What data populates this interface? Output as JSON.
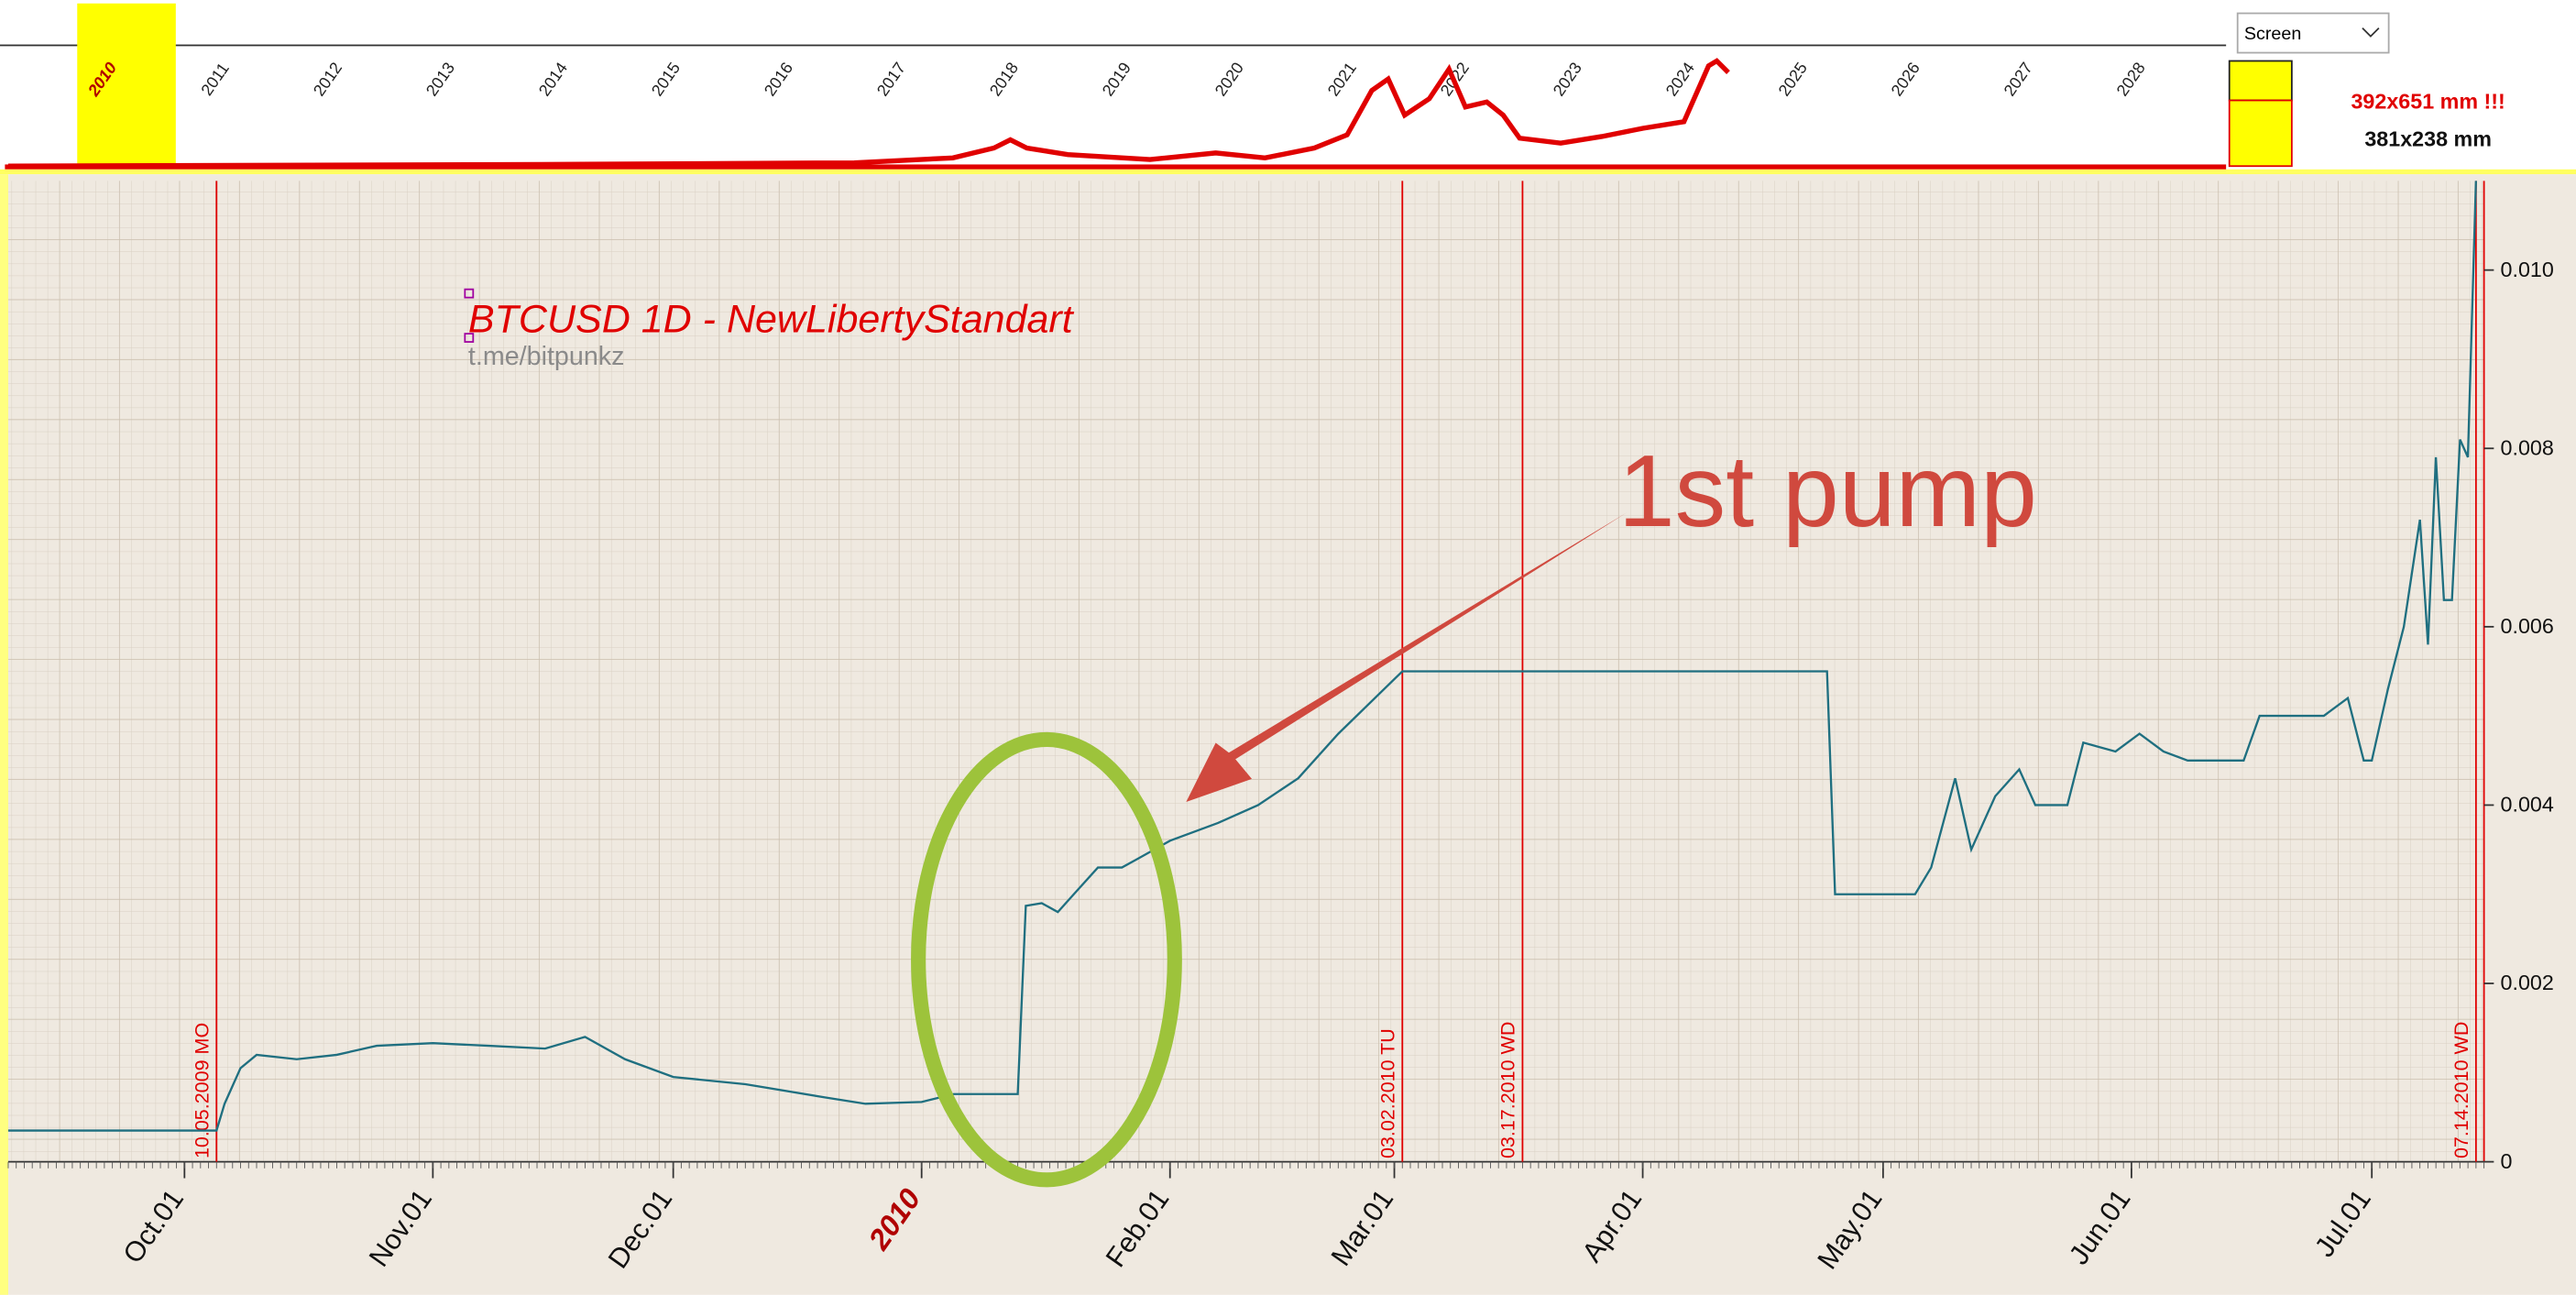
{
  "overview": {
    "years": [
      "2010",
      "2011",
      "2012",
      "2013",
      "2014",
      "2015",
      "2016",
      "2017",
      "2018",
      "2019",
      "2020",
      "2021",
      "2022",
      "2023",
      "2024",
      "2025",
      "2026",
      "2027",
      "2028"
    ],
    "dropdown": "Screen",
    "size_warning": "392x651 mm !!!",
    "size": "381x238 mm"
  },
  "chart_data": {
    "type": "line",
    "title": "BTCUSD 1D - NewLibertyStandart",
    "subtitle": "t.me/bitpunkz",
    "annotation": "1st pump",
    "color": "#1f6f80",
    "x": [
      "2009-09-09",
      "2009-10-05",
      "2009-10-06",
      "2009-10-08",
      "2009-10-10",
      "2009-10-15",
      "2009-10-20",
      "2009-10-25",
      "2009-11-01",
      "2009-11-08",
      "2009-11-15",
      "2009-11-20",
      "2009-11-25",
      "2009-12-01",
      "2009-12-10",
      "2009-12-20",
      "2009-12-25",
      "2010-01-01",
      "2010-01-05",
      "2010-01-13",
      "2010-01-14",
      "2010-01-16",
      "2010-01-18",
      "2010-01-20",
      "2010-01-23",
      "2010-01-26",
      "2010-01-28",
      "2010-02-01",
      "2010-02-07",
      "2010-02-12",
      "2010-02-17",
      "2010-02-22",
      "2010-03-02",
      "2010-04-24",
      "2010-04-25",
      "2010-05-05",
      "2010-05-07",
      "2010-05-10",
      "2010-05-12",
      "2010-05-15",
      "2010-05-18",
      "2010-05-20",
      "2010-05-24",
      "2010-05-26",
      "2010-05-30",
      "2010-06-02",
      "2010-06-05",
      "2010-06-08",
      "2010-06-15",
      "2010-06-17",
      "2010-06-25",
      "2010-06-28",
      "2010-06-30",
      "2010-07-01",
      "2010-07-03",
      "2010-07-05",
      "2010-07-07",
      "2010-07-08",
      "2010-07-09",
      "2010-07-10",
      "2010-07-11",
      "2010-07-12",
      "2010-07-13",
      "2010-07-14"
    ],
    "values": [
      0.00035,
      0.00035,
      0.00065,
      0.00105,
      0.0012,
      0.00115,
      0.0012,
      0.0013,
      0.00133,
      0.0013,
      0.00127,
      0.0014,
      0.00115,
      0.00095,
      0.00087,
      0.00072,
      0.00065,
      0.00067,
      0.00076,
      0.00076,
      0.00287,
      0.0029,
      0.0028,
      0.003,
      0.0033,
      0.0033,
      0.0034,
      0.0036,
      0.0038,
      0.004,
      0.0043,
      0.0048,
      0.0055,
      0.0055,
      0.003,
      0.003,
      0.0033,
      0.0043,
      0.0035,
      0.0041,
      0.0044,
      0.004,
      0.004,
      0.0047,
      0.0046,
      0.0048,
      0.0046,
      0.0045,
      0.0045,
      0.005,
      0.005,
      0.0052,
      0.0045,
      0.0045,
      0.0053,
      0.006,
      0.0072,
      0.0058,
      0.0079,
      0.0063,
      0.0063,
      0.0081,
      0.0079,
      0.011
    ],
    "xlim": [
      "2009-09-09",
      "2010-07-15"
    ],
    "xticks": [
      {
        "value": "2009-10-01",
        "label": "Oct.01"
      },
      {
        "value": "2009-11-01",
        "label": "Nov.01"
      },
      {
        "value": "2009-12-01",
        "label": "Dec.01"
      },
      {
        "value": "2010-01-01",
        "label": "2010"
      },
      {
        "value": "2010-02-01",
        "label": "Feb.01"
      },
      {
        "value": "2010-03-01",
        "label": "Mar.01"
      },
      {
        "value": "2010-04-01",
        "label": "Apr.01"
      },
      {
        "value": "2010-05-01",
        "label": "May.01"
      },
      {
        "value": "2010-06-01",
        "label": "Jun.01"
      },
      {
        "value": "2010-07-01",
        "label": "Jul.01"
      }
    ],
    "ylim": [
      0,
      0.011
    ],
    "yticks": [
      0,
      0.002,
      0.004,
      0.006,
      0.008,
      {
        "value": 0.01,
        "label": "0.010"
      }
    ],
    "markers": [
      {
        "date": "2009-10-05",
        "label": "10.05.2009 MO"
      },
      {
        "date": "2010-03-02",
        "label": "03.02.2010 TU"
      },
      {
        "date": "2010-03-17",
        "label": "03.17.2010 WD"
      },
      {
        "date": "2010-07-14",
        "label": "07.14.2010 WD"
      }
    ]
  }
}
